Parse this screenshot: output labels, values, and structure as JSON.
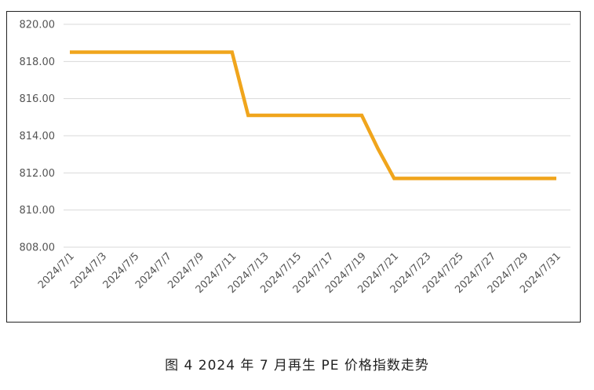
{
  "chart_data": {
    "type": "line",
    "x": [
      "2024/7/1",
      "2024/7/2",
      "2024/7/3",
      "2024/7/4",
      "2024/7/5",
      "2024/7/6",
      "2024/7/7",
      "2024/7/8",
      "2024/7/9",
      "2024/7/10",
      "2024/7/11",
      "2024/7/12",
      "2024/7/13",
      "2024/7/14",
      "2024/7/15",
      "2024/7/16",
      "2024/7/17",
      "2024/7/18",
      "2024/7/19",
      "2024/7/20",
      "2024/7/21",
      "2024/7/22",
      "2024/7/23",
      "2024/7/24",
      "2024/7/25",
      "2024/7/26",
      "2024/7/27",
      "2024/7/28",
      "2024/7/29",
      "2024/7/30",
      "2024/7/31"
    ],
    "x_tick_labels": [
      "2024/7/1",
      "2024/7/3",
      "2024/7/5",
      "2024/7/7",
      "2024/7/9",
      "2024/7/11",
      "2024/7/13",
      "2024/7/15",
      "2024/7/17",
      "2024/7/19",
      "2024/7/21",
      "2024/7/23",
      "2024/7/25",
      "2024/7/27",
      "2024/7/29",
      "2024/7/31"
    ],
    "series": [
      {
        "color": "#f0a51c",
        "values": [
          818.5,
          818.5,
          818.5,
          818.5,
          818.5,
          818.5,
          818.5,
          818.5,
          818.5,
          818.5,
          818.5,
          815.1,
          815.1,
          815.1,
          815.1,
          815.1,
          815.1,
          815.1,
          815.1,
          813.3,
          811.7,
          811.7,
          811.7,
          811.7,
          811.7,
          811.7,
          811.7,
          811.7,
          811.7,
          811.7,
          811.7
        ]
      }
    ],
    "y_tick_labels": [
      "808.00",
      "810.00",
      "812.00",
      "814.00",
      "816.00",
      "818.00",
      "820.00"
    ],
    "ylim": [
      808,
      820
    ],
    "grid": true,
    "gridline_color": "#d9d9d9",
    "title": "",
    "xlabel": "",
    "ylabel": ""
  },
  "caption": "图 4  2024 年 7 月再生 PE 价格指数走势"
}
